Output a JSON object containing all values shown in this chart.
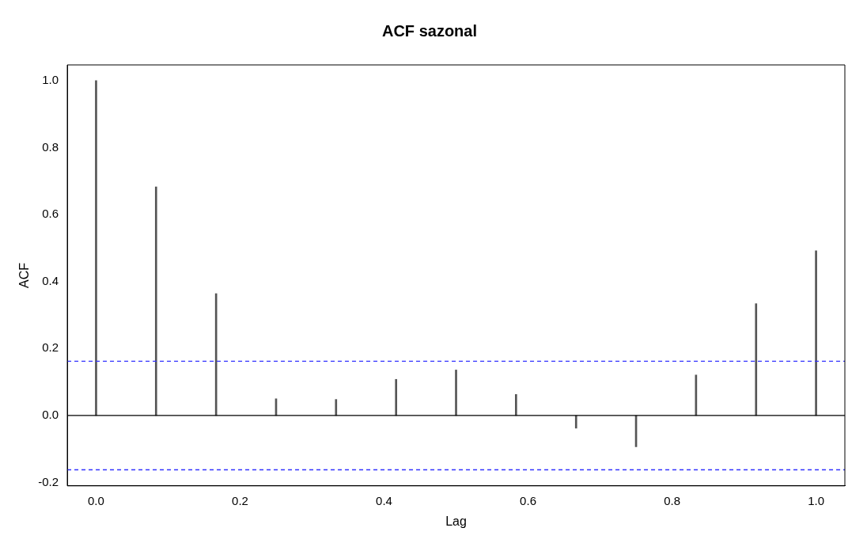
{
  "chart_data": {
    "type": "bar",
    "title": "ACF sazonal",
    "xlabel": "Lag",
    "ylabel": "ACF",
    "x": [
      0,
      0.0833,
      0.1667,
      0.25,
      0.3333,
      0.4167,
      0.5,
      0.5833,
      0.6667,
      0.75,
      0.8333,
      0.9167,
      1.0
    ],
    "values": [
      1.0,
      0.683,
      0.364,
      0.05,
      0.048,
      0.108,
      0.136,
      0.063,
      -0.038,
      -0.093,
      0.121,
      0.334,
      0.492
    ],
    "color": "#555555",
    "xlim": [
      -0.04,
      1.04
    ],
    "xticks": [
      {
        "value": 0,
        "label": "0.0"
      },
      {
        "value": 0.2,
        "label": "0.2"
      },
      {
        "value": 0.4,
        "label": "0.4"
      },
      {
        "value": 0.6,
        "label": "0.6"
      },
      {
        "value": 0.8,
        "label": "0.8"
      },
      {
        "value": 1,
        "label": "1.0"
      }
    ],
    "ylim": [
      -0.21,
      1.047
    ],
    "yticks": [
      {
        "value": -0.2,
        "label": "-0.2"
      },
      {
        "value": 0,
        "label": "0.0"
      },
      {
        "value": 0.2,
        "label": "0.2"
      },
      {
        "value": 0.4,
        "label": "0.4"
      },
      {
        "value": 0.6,
        "label": "0.6"
      },
      {
        "value": 0.8,
        "label": "0.8"
      },
      {
        "value": 1,
        "label": "1.0"
      }
    ],
    "ref_lines": [
      {
        "axis": "y",
        "value": 0,
        "color": "#000000",
        "line_style": "solid"
      },
      {
        "axis": "y",
        "value": 0.162,
        "color": "#3333ff",
        "line_style": "dashed"
      },
      {
        "axis": "y",
        "value": -0.162,
        "color": "#3333ff",
        "line_style": "dashed"
      }
    ],
    "grid": false,
    "legend": false
  }
}
